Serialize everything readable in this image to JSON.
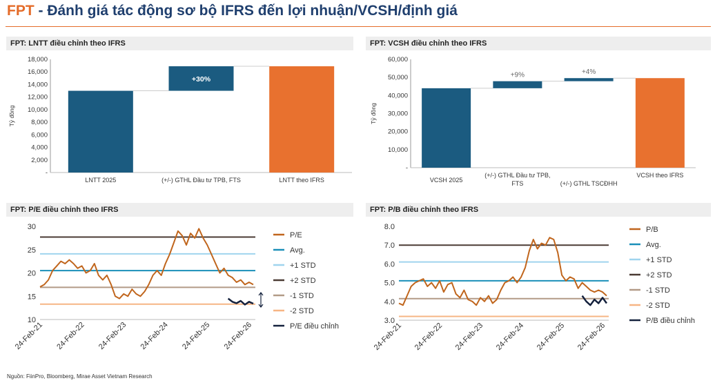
{
  "header": {
    "brand": "FPT",
    "title_rest": " - Đánh giá tác động sơ bộ IFRS đến lợi nhuận/VCSH/định giá"
  },
  "source": "Nguồn: FiinPro, Bloomberg, Mirae Asset Vietnam Research",
  "colors": {
    "blue": "#1b5b80",
    "orange": "#e8712f",
    "pe_line": "#c0651c",
    "avg": "#1a8fb8",
    "std1": "#9fd4ee",
    "std2": "#4a3a33",
    "stdm1": "#b29a86",
    "stdm2": "#f6b584",
    "adj": "#14213d"
  },
  "chart_data": [
    {
      "id": "lntt",
      "type": "bar",
      "subtype": "waterfall",
      "title": "FPT: LNTT điều chỉnh theo IFRS",
      "ylabel": "Tỷ đồng",
      "ylim": [
        0,
        18000
      ],
      "yticks": [
        "-",
        "2,000",
        "4,000",
        "6,000",
        "8,000",
        "10,000",
        "12,000",
        "14,000",
        "16,000",
        "18,000"
      ],
      "categories": [
        "LNTT 2025",
        "(+/-) GTHL Đầu tư TPB, FTS",
        "LNTT theo IFRS"
      ],
      "bars": [
        {
          "base": 0,
          "value": 13000,
          "color": "blue",
          "label": ""
        },
        {
          "base": 13000,
          "value": 3900,
          "color": "blue",
          "label": "+30%"
        },
        {
          "base": 0,
          "value": 16900,
          "color": "orange",
          "label": ""
        }
      ]
    },
    {
      "id": "vcsh",
      "type": "bar",
      "subtype": "waterfall",
      "title": "FPT: VCSH điều chỉnh theo IFRS",
      "ylabel": "Tỷ đồng",
      "ylim": [
        0,
        60000
      ],
      "yticks": [
        "-",
        "10,000",
        "20,000",
        "30,000",
        "40,000",
        "50,000",
        "60,000"
      ],
      "categories": [
        "VCSH 2025",
        "(+/-) GTHL Đầu tư TPB, FTS",
        "(+/-) GTHL TSCĐHH",
        "VCSH theo IFRS"
      ],
      "bars": [
        {
          "base": 0,
          "value": 44000,
          "color": "blue",
          "label": ""
        },
        {
          "base": 44000,
          "value": 3900,
          "color": "blue",
          "label": "+9%"
        },
        {
          "base": 47900,
          "value": 1700,
          "color": "blue",
          "label": "+4%"
        },
        {
          "base": 0,
          "value": 49600,
          "color": "orange",
          "label": ""
        }
      ]
    },
    {
      "id": "pe",
      "type": "line",
      "title": "FPT: P/E điều chỉnh theo IFRS",
      "ylim": [
        10,
        30
      ],
      "yticks": [
        "10",
        "15",
        "20",
        "25",
        "30"
      ],
      "xlabels": [
        "24-Feb-21",
        "24-Feb-22",
        "24-Feb-23",
        "24-Feb-24",
        "24-Feb-25",
        "24-Feb-26"
      ],
      "x_range": [
        2021,
        2026.15
      ],
      "bands": [
        {
          "name": "Avg.",
          "value": 20.5,
          "color": "avg"
        },
        {
          "name": "+1 STD",
          "value": 24.1,
          "color": "std1"
        },
        {
          "name": "+2 STD",
          "value": 27.7,
          "color": "std2"
        },
        {
          "name": "-1 STD",
          "value": 16.9,
          "color": "stdm1"
        },
        {
          "name": "-2 STD",
          "value": 13.3,
          "color": "stdm2"
        }
      ],
      "series": [
        {
          "name": "P/E",
          "color": "pe_line",
          "x": [
            2021.0,
            2021.1,
            2021.2,
            2021.3,
            2021.4,
            2021.5,
            2021.6,
            2021.7,
            2021.8,
            2021.9,
            2022.0,
            2022.1,
            2022.2,
            2022.3,
            2022.4,
            2022.5,
            2022.6,
            2022.7,
            2022.8,
            2022.9,
            2023.0,
            2023.1,
            2023.2,
            2023.3,
            2023.4,
            2023.5,
            2023.6,
            2023.7,
            2023.8,
            2023.9,
            2024.0,
            2024.1,
            2024.2,
            2024.3,
            2024.4,
            2024.5,
            2024.6,
            2024.7,
            2024.8,
            2024.9,
            2025.0,
            2025.1,
            2025.2,
            2025.3,
            2025.4,
            2025.5,
            2025.6,
            2025.7,
            2025.8,
            2025.9,
            2026.0,
            2026.1
          ],
          "values": [
            17.0,
            17.5,
            18.5,
            20.5,
            21.5,
            22.5,
            22.0,
            22.8,
            22.0,
            21.0,
            21.5,
            20.0,
            20.5,
            22.0,
            19.5,
            18.5,
            19.5,
            17.5,
            15.0,
            14.5,
            15.5,
            15.0,
            16.5,
            15.5,
            15.0,
            16.0,
            17.5,
            19.5,
            20.5,
            19.5,
            22.0,
            24.0,
            26.5,
            29.0,
            28.0,
            26.0,
            28.5,
            27.5,
            29.5,
            27.5,
            26.0,
            24.0,
            22.0,
            20.0,
            21.0,
            19.5,
            19.0,
            18.0,
            18.5,
            17.5,
            18.0,
            17.5
          ]
        },
        {
          "name": "P/E điều chỉnh",
          "color": "adj",
          "x": [
            2025.5,
            2025.6,
            2025.7,
            2025.8,
            2025.9,
            2026.0,
            2026.1
          ],
          "values": [
            14.5,
            13.8,
            13.5,
            14.0,
            13.2,
            13.8,
            13.4
          ]
        }
      ],
      "legend": [
        "P/E",
        "Avg.",
        "+1 STD",
        "+2 STD",
        "-1 STD",
        "-2 STD",
        "P/E điều chỉnh"
      ]
    },
    {
      "id": "pb",
      "type": "line",
      "title": "FPT: P/B điều chỉnh theo IFRS",
      "ylim": [
        3,
        8
      ],
      "yticks": [
        "3.0",
        "4.0",
        "5.0",
        "6.0",
        "7.0",
        "8.0"
      ],
      "xlabels": [
        "24-Feb-21",
        "24-Feb-22",
        "24-Feb-23",
        "24-Feb-24",
        "24-Feb-25",
        "24-Feb-26"
      ],
      "x_range": [
        2021,
        2026.15
      ],
      "bands": [
        {
          "name": "Avg.",
          "value": 5.1,
          "color": "avg"
        },
        {
          "name": "+1 STD",
          "value": 6.1,
          "color": "std1"
        },
        {
          "name": "+2 STD",
          "value": 7.0,
          "color": "std2"
        },
        {
          "name": "-1 STD",
          "value": 4.15,
          "color": "stdm1"
        },
        {
          "name": "-2 STD",
          "value": 3.2,
          "color": "stdm2"
        }
      ],
      "series": [
        {
          "name": "P/B",
          "color": "pe_line",
          "x": [
            2021.0,
            2021.1,
            2021.2,
            2021.3,
            2021.4,
            2021.5,
            2021.6,
            2021.7,
            2021.8,
            2021.9,
            2022.0,
            2022.1,
            2022.2,
            2022.3,
            2022.4,
            2022.5,
            2022.6,
            2022.7,
            2022.8,
            2022.9,
            2023.0,
            2023.1,
            2023.2,
            2023.3,
            2023.4,
            2023.5,
            2023.6,
            2023.7,
            2023.8,
            2023.9,
            2024.0,
            2024.1,
            2024.2,
            2024.3,
            2024.4,
            2024.5,
            2024.6,
            2024.7,
            2024.8,
            2024.9,
            2025.0,
            2025.1,
            2025.2,
            2025.3,
            2025.4,
            2025.5,
            2025.6,
            2025.7,
            2025.8,
            2025.9,
            2026.0,
            2026.1
          ],
          "values": [
            3.9,
            3.8,
            4.3,
            4.8,
            5.0,
            5.1,
            5.2,
            4.8,
            5.0,
            4.7,
            5.1,
            4.5,
            4.9,
            5.0,
            4.4,
            4.2,
            4.6,
            4.1,
            4.0,
            3.8,
            4.2,
            4.0,
            4.3,
            3.9,
            4.1,
            4.6,
            5.0,
            5.1,
            5.3,
            5.0,
            5.3,
            5.8,
            6.7,
            7.3,
            6.8,
            7.1,
            7.0,
            7.4,
            7.3,
            6.6,
            5.4,
            5.1,
            5.3,
            5.2,
            4.7,
            5.0,
            4.8,
            4.6,
            4.5,
            4.6,
            4.5,
            4.3
          ]
        },
        {
          "name": "P/B điều chỉnh",
          "color": "adj",
          "x": [
            2025.5,
            2025.6,
            2025.7,
            2025.8,
            2025.9,
            2026.0,
            2026.1
          ],
          "values": [
            4.3,
            4.0,
            3.8,
            4.1,
            3.9,
            4.2,
            3.9
          ]
        }
      ],
      "legend": [
        "P/B",
        "Avg.",
        "+1 STD",
        "+2 STD",
        "-1 STD",
        "-2 STD",
        "P/B điều chỉnh"
      ]
    }
  ]
}
